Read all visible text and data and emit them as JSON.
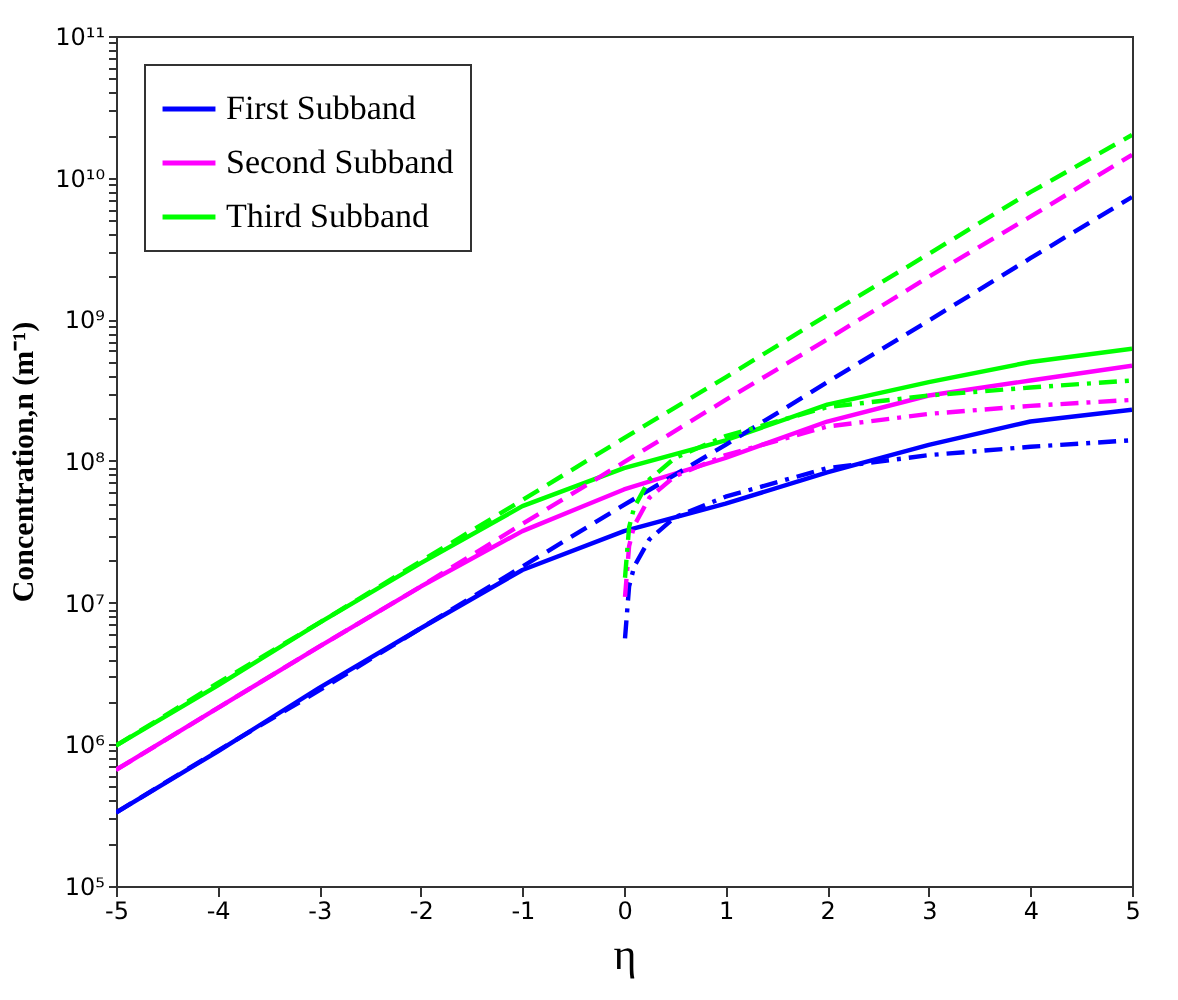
{
  "chart_data": {
    "type": "line",
    "xlabel": "η",
    "ylabel": "Concentration,n (m⁻¹)",
    "log": "y",
    "legend": "top left",
    "xlim": [
      -5,
      5
    ],
    "xticks": [
      -5,
      -4,
      -3,
      -2,
      -1,
      0,
      1,
      2,
      3,
      4,
      5
    ],
    "ylim": [
      100000,
      100000000000
    ],
    "yticks": [
      {
        "value": 100000,
        "label": "10⁵"
      },
      {
        "value": 200000,
        "label": null
      },
      {
        "value": 300000,
        "label": null
      },
      {
        "value": 400000,
        "label": null
      },
      {
        "value": 500000,
        "label": null
      },
      {
        "value": 600000,
        "label": null
      },
      {
        "value": 700000,
        "label": null
      },
      {
        "value": 800000,
        "label": null
      },
      {
        "value": 900000,
        "label": null
      },
      {
        "value": 1000000,
        "label": "10⁶"
      },
      {
        "value": 2000000,
        "label": null
      },
      {
        "value": 3000000,
        "label": null
      },
      {
        "value": 4000000,
        "label": null
      },
      {
        "value": 5000000,
        "label": null
      },
      {
        "value": 6000000,
        "label": null
      },
      {
        "value": 7000000,
        "label": null
      },
      {
        "value": 8000000,
        "label": null
      },
      {
        "value": 9000000,
        "label": null
      },
      {
        "value": 10000000,
        "label": "10⁷"
      },
      {
        "value": 20000000,
        "label": null
      },
      {
        "value": 30000000,
        "label": null
      },
      {
        "value": 40000000,
        "label": null
      },
      {
        "value": 50000000,
        "label": null
      },
      {
        "value": 60000000,
        "label": null
      },
      {
        "value": 70000000,
        "label": null
      },
      {
        "value": 80000000,
        "label": null
      },
      {
        "value": 90000000,
        "label": null
      },
      {
        "value": 100000000,
        "label": "10⁸"
      },
      {
        "value": 200000000,
        "label": null
      },
      {
        "value": 300000000,
        "label": null
      },
      {
        "value": 400000000,
        "label": null
      },
      {
        "value": 500000000,
        "label": null
      },
      {
        "value": 600000000,
        "label": null
      },
      {
        "value": 700000000,
        "label": null
      },
      {
        "value": 800000000,
        "label": null
      },
      {
        "value": 900000000,
        "label": null
      },
      {
        "value": 1000000000,
        "label": "10⁹"
      },
      {
        "value": 2000000000,
        "label": null
      },
      {
        "value": 3000000000,
        "label": null
      },
      {
        "value": 4000000000,
        "label": null
      },
      {
        "value": 5000000000,
        "label": null
      },
      {
        "value": 6000000000,
        "label": null
      },
      {
        "value": 7000000000,
        "label": null
      },
      {
        "value": 8000000000,
        "label": null
      },
      {
        "value": 9000000000,
        "label": null
      },
      {
        "value": 10000000000,
        "label": "10¹⁰"
      },
      {
        "value": 20000000000,
        "label": null
      },
      {
        "value": 30000000000,
        "label": null
      },
      {
        "value": 40000000000,
        "label": null
      },
      {
        "value": 50000000000,
        "label": null
      },
      {
        "value": 60000000000,
        "label": null
      },
      {
        "value": 70000000000,
        "label": null
      },
      {
        "value": 80000000000,
        "label": null
      },
      {
        "value": 90000000000,
        "label": null
      },
      {
        "value": 100000000000,
        "label": "10¹¹"
      }
    ],
    "grid": false,
    "marker": "none",
    "series": [
      {
        "name": "First Subband",
        "color": "#0000ff",
        "line_style": "solid",
        "x": [
          -5,
          -4,
          -3,
          -2,
          -1,
          0,
          1,
          2,
          3,
          4,
          5
        ],
        "values": [
          330000,
          890000,
          2500000,
          6600000,
          17000000,
          32000000,
          50000000,
          83000000,
          130000000,
          190000000,
          230000000
        ]
      },
      {
        "name": "Second Subband",
        "color": "#ff00ff",
        "line_style": "solid",
        "x": [
          -5,
          -4,
          -3,
          -2,
          -1,
          0,
          1,
          2,
          3,
          4,
          5
        ],
        "values": [
          660000,
          1800000,
          4900000,
          13000000,
          32000000,
          63000000,
          105000000,
          190000000,
          290000000,
          370000000,
          470000000
        ]
      },
      {
        "name": "Third Subband",
        "color": "#00ff00",
        "line_style": "solid",
        "x": [
          -5,
          -4,
          -3,
          -2,
          -1,
          0,
          1,
          2,
          3,
          4,
          5
        ],
        "values": [
          980000,
          2600000,
          7200000,
          19000000,
          48000000,
          89000000,
          140000000,
          250000000,
          360000000,
          500000000,
          620000000
        ]
      },
      {
        "color": "#0000ff",
        "line_style": "dashed",
        "x": [
          -5,
          -4,
          -3,
          -2,
          -1,
          0,
          1,
          2,
          3,
          4,
          5
        ],
        "values": [
          330000,
          900000,
          2400000,
          6600000,
          18000000,
          49000000,
          130000000,
          360000000,
          980000000,
          2700000000,
          7300000000
        ]
      },
      {
        "color": "#ff00ff",
        "line_style": "dashed",
        "x": [
          -5,
          -4,
          -3,
          -2,
          -1,
          0,
          1,
          2,
          3,
          4,
          5
        ],
        "values": [
          660000,
          1800000,
          4900000,
          13000000,
          36000000,
          98000000,
          270000000,
          720000000,
          2000000000,
          5300000000,
          14500000000
        ]
      },
      {
        "color": "#00ff00",
        "line_style": "dashed",
        "x": [
          -5,
          -4,
          -3,
          -2,
          -1,
          0,
          1,
          2,
          3,
          4,
          5
        ],
        "values": [
          980000,
          2700000,
          7200000,
          19600000,
          53000000,
          145000000,
          390000000,
          1070000000,
          2900000000,
          7900000000,
          20000000000
        ]
      },
      {
        "color": "#0000ff",
        "line_style": "dashdot",
        "x": [
          0.01,
          0.05,
          0.1,
          0.25,
          0.5,
          1,
          2,
          3,
          4,
          5
        ],
        "values": [
          5600000,
          13000000,
          18000000,
          28000000,
          40000000,
          56000000,
          89000000,
          110000000,
          126000000,
          140000000
        ]
      },
      {
        "color": "#ff00ff",
        "line_style": "dashdot",
        "x": [
          0.01,
          0.05,
          0.1,
          0.25,
          0.5,
          1,
          2,
          3,
          4,
          5
        ],
        "values": [
          11000000,
          25000000,
          35000000,
          55000000,
          78000000,
          110000000,
          175000000,
          215000000,
          245000000,
          270000000
        ]
      },
      {
        "color": "#00ff00",
        "line_style": "dashdot",
        "x": [
          0.01,
          0.05,
          0.1,
          0.25,
          0.5,
          1,
          2,
          3,
          4,
          5
        ],
        "values": [
          15000000,
          34000000,
          47000000,
          74000000,
          105000000,
          150000000,
          240000000,
          290000000,
          330000000,
          370000000
        ]
      }
    ]
  }
}
